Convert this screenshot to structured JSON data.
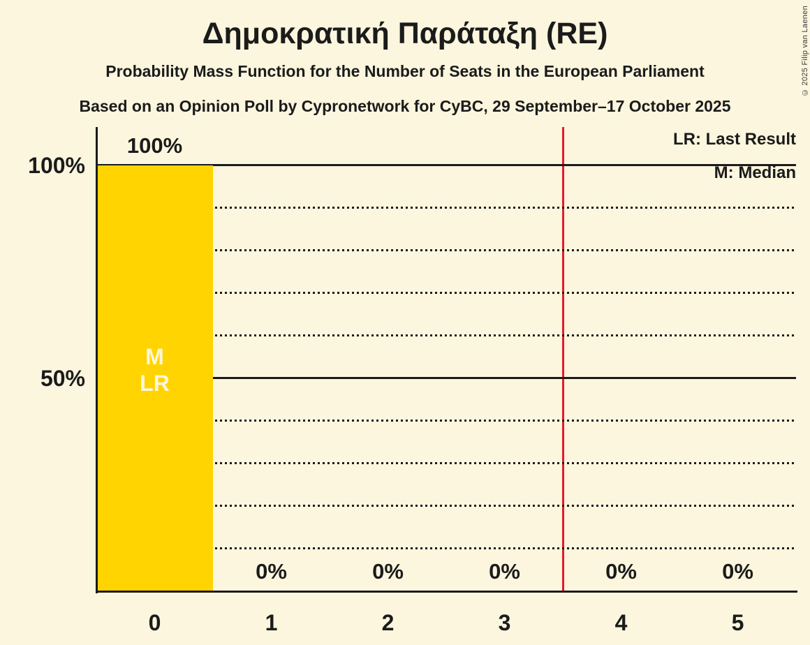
{
  "copyright": "© 2025 Filip van Laenen",
  "colors": {
    "background": "#fcf6de",
    "bar": "#ffd400",
    "red_line": "#e8192c",
    "text": "#1b1b1b",
    "in_bar_text": "#fcf6de"
  },
  "chart_data": {
    "type": "bar",
    "title": "Δημοκρατική Παράταξη (RE)",
    "subtitle": "Probability Mass Function for the Number of Seats in the European Parliament",
    "source_line": "Based on an Opinion Poll by Cypronetwork for CyBC, 29 September–17 October 2025",
    "xlabel": "",
    "ylabel": "",
    "categories": [
      "0",
      "1",
      "2",
      "3",
      "4",
      "5"
    ],
    "values": [
      100,
      0,
      0,
      0,
      0,
      0
    ],
    "value_labels": [
      "100%",
      "0%",
      "0%",
      "0%",
      "0%",
      "0%"
    ],
    "ylim": [
      0,
      100
    ],
    "y_ticks": [
      {
        "value": 100,
        "label": "100%"
      },
      {
        "value": 50,
        "label": "50%"
      }
    ],
    "gridlines": {
      "step": 10,
      "solid_at": [
        50,
        100
      ],
      "style": "dotted"
    },
    "legend": [
      {
        "abbr": "LR",
        "label": "LR: Last Result"
      },
      {
        "abbr": "M",
        "label": "M: Median"
      }
    ],
    "median_bar_index": 0,
    "bar_annotations": [
      "M",
      "LR"
    ],
    "last_result_line_x": 3.5
  }
}
